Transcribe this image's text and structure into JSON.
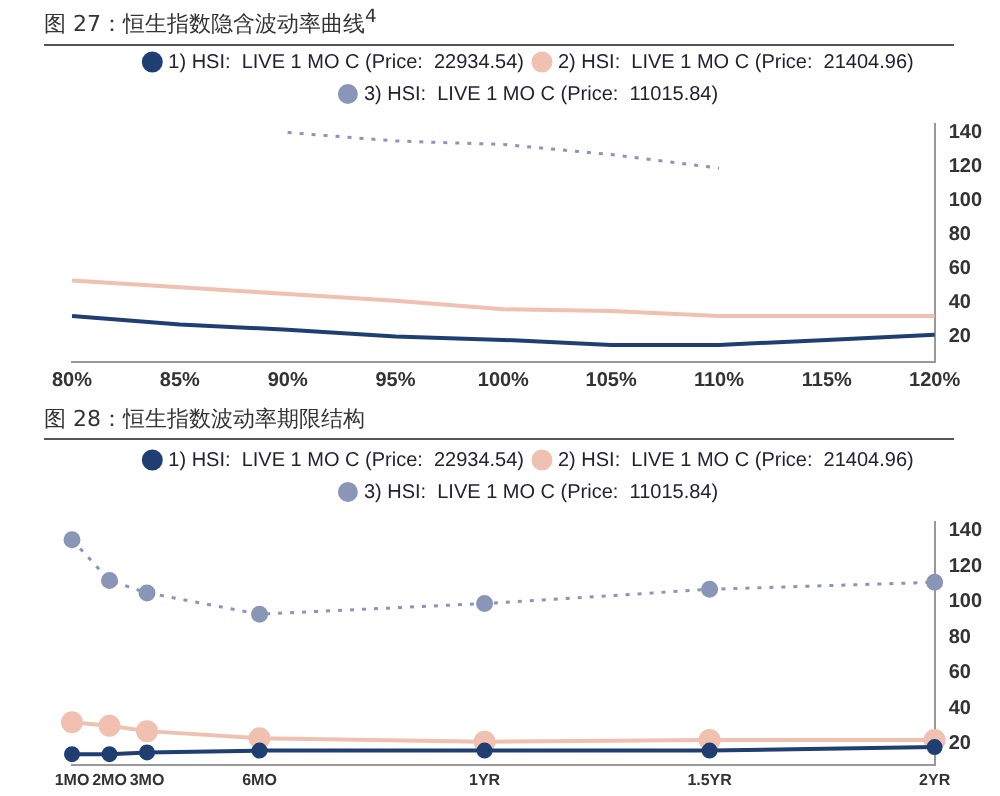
{
  "chart_data": [
    {
      "type": "line",
      "title": "图 27：恒生指数隐含波动率曲线$^{4}$",
      "categories": [
        "80%",
        "85%",
        "90%",
        "95%",
        "100%",
        "105%",
        "110%",
        "115%",
        "120%"
      ],
      "series": [
        {
          "name": "1) HSI:  LIVE 1 MO C (Price:  22934.54)",
          "color": "#1f3f73",
          "values": [
            32,
            27,
            24,
            20,
            18,
            15,
            15,
            18,
            21
          ]
        },
        {
          "name": "2) HSI:  LIVE 1 MO C (Price:  21404.96)",
          "color": "#f0c0b0",
          "values": [
            53,
            49,
            45,
            41,
            36,
            35,
            32,
            32,
            32
          ]
        },
        {
          "name": "3) HSI:  LIVE 1 MO C (Price:  11015.84)",
          "color": "#8a96b8",
          "values": [
            null,
            null,
            140,
            135,
            133,
            127,
            119,
            null,
            null
          ],
          "line_style": "dotted"
        }
      ],
      "ylim": [
        5,
        145
      ],
      "yticks": [
        20,
        40,
        60,
        80,
        100,
        120,
        140
      ],
      "legend": "top",
      "grid": false,
      "marker": "none"
    },
    {
      "type": "line",
      "title": "图 28：恒生指数波动率期限结构",
      "categories": [
        "1MO",
        "2MO",
        "3MO",
        null,
        null,
        "6MO",
        null,
        null,
        null,
        null,
        null,
        "1YR",
        null,
        null,
        null,
        null,
        null,
        "1.5YR",
        null,
        null,
        null,
        null,
        null,
        "2YR"
      ],
      "series": [
        {
          "name": "1) HSI:  LIVE 1 MO C (Price:  22934.54)",
          "color": "#1f3f73",
          "values": [
            14,
            14,
            15,
            null,
            null,
            16,
            null,
            null,
            null,
            null,
            null,
            16,
            null,
            null,
            null,
            null,
            null,
            16,
            null,
            null,
            null,
            null,
            null,
            18
          ]
        },
        {
          "name": "2) HSI:  LIVE 1 MO C (Price:  21404.96)",
          "color": "#f0c0b0",
          "values": [
            32,
            30,
            27,
            null,
            null,
            23,
            null,
            null,
            null,
            null,
            null,
            21,
            null,
            null,
            null,
            null,
            null,
            22,
            null,
            null,
            null,
            null,
            null,
            22
          ]
        },
        {
          "name": "3) HSI:  LIVE 1 MO C (Price:  11015.84)",
          "color": "#8a96b8",
          "values": [
            135,
            112,
            105,
            null,
            null,
            93,
            null,
            null,
            null,
            null,
            null,
            99,
            null,
            null,
            null,
            null,
            null,
            107,
            null,
            null,
            null,
            null,
            null,
            111
          ],
          "line_style": "dotted"
        }
      ],
      "ylim": [
        8,
        145
      ],
      "yticks": [
        20,
        40,
        60,
        80,
        100,
        120,
        140
      ],
      "legend": "top",
      "grid": false,
      "marker": "circle"
    }
  ]
}
